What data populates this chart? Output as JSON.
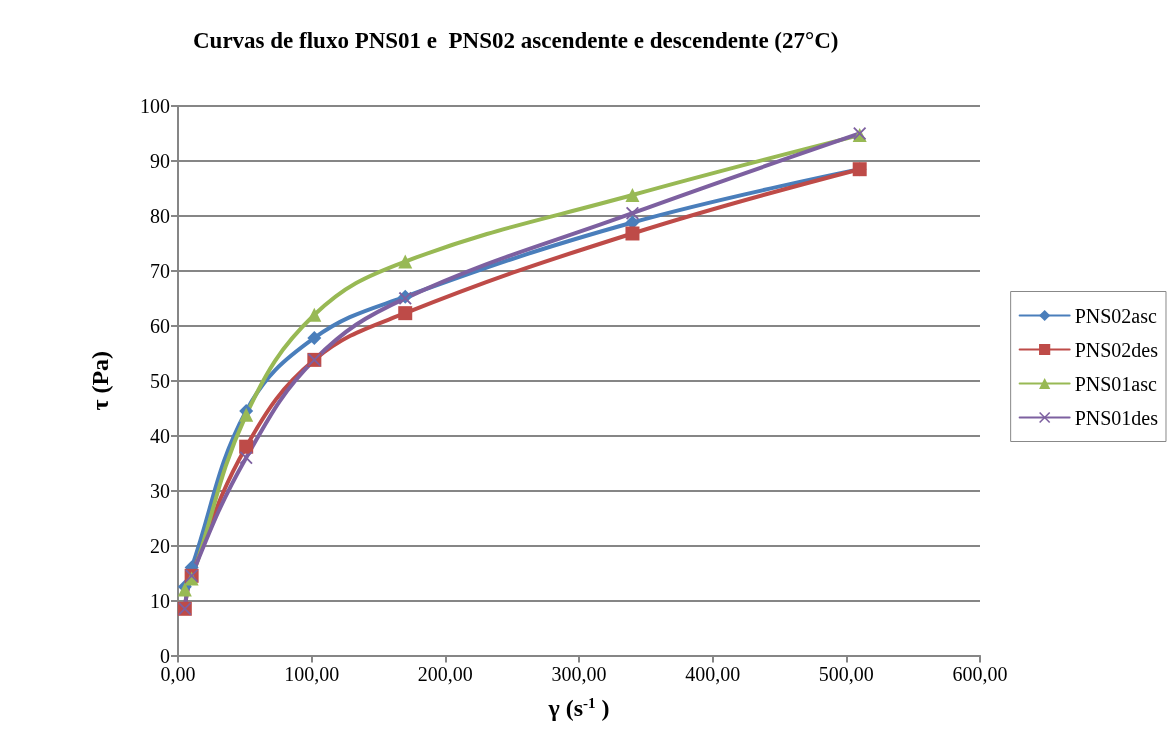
{
  "chart_data": {
    "type": "line",
    "title": "Curvas de fluxo PNS01 e  PNS02 ascendente e descendente (27°C)",
    "xlabel": "γ (s$^{-1}$ )",
    "ylabel": "τ (Pa)",
    "x": [
      5.1,
      10.2,
      51,
      102,
      170,
      340,
      510
    ],
    "series": [
      {
        "name": "PNS02asc",
        "color": "#4a7ebb",
        "marker": "diamond",
        "values": [
          12.5,
          16,
          44.5,
          57.8,
          65.3,
          78.8,
          88.5
        ]
      },
      {
        "name": "PNS02des",
        "color": "#be4b48",
        "marker": "square",
        "values": [
          8.5,
          14.5,
          38,
          53.8,
          62.3,
          76.8,
          88.5
        ]
      },
      {
        "name": "PNS01asc",
        "color": "#98b954",
        "marker": "triangle",
        "values": [
          12,
          14,
          43.8,
          62,
          71.7,
          83.8,
          94.7
        ]
      },
      {
        "name": "PNS01des",
        "color": "#7d60a0",
        "marker": "cross",
        "values": [
          8.5,
          14.5,
          36,
          53.8,
          65,
          80.5,
          95
        ]
      }
    ],
    "xlim": [
      0,
      600
    ],
    "xticks": [
      {
        "value": 0,
        "label": "0,00"
      },
      {
        "value": 100,
        "label": "100,00"
      },
      {
        "value": 200,
        "label": "200,00"
      },
      {
        "value": 300,
        "label": "300,00"
      },
      {
        "value": 400,
        "label": "400,00"
      },
      {
        "value": 500,
        "label": "500,00"
      },
      {
        "value": 600,
        "label": "600,00"
      }
    ],
    "ylim": [
      0,
      100
    ],
    "yticks": [
      0,
      10,
      20,
      30,
      40,
      50,
      60,
      70,
      80,
      90,
      100
    ],
    "grid": "y",
    "legend": "right",
    "line_style": "solid"
  }
}
